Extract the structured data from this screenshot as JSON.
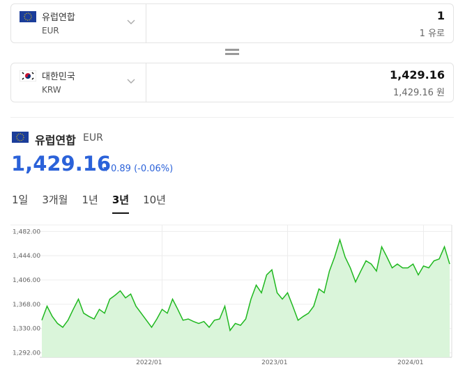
{
  "converter": {
    "from": {
      "name": "유럽연합",
      "code": "EUR",
      "amount": "1",
      "amount_sub": "1 유로"
    },
    "to": {
      "name": "대한민국",
      "code": "KRW",
      "amount": "1,429.16",
      "amount_sub": "1,429.16 원"
    }
  },
  "summary": {
    "name": "유럽연합",
    "code": "EUR",
    "rate": "1,429.16",
    "change": "0.89 (-0.06%)"
  },
  "tabs": {
    "items": [
      "1일",
      "3개월",
      "1년",
      "3년",
      "10년"
    ],
    "active": 3
  },
  "chart_data": {
    "type": "line",
    "color": "#1fb81f",
    "fill": "#daf5da",
    "grid": true,
    "categories": [
      null,
      null,
      null,
      null,
      null,
      null,
      null,
      null,
      null,
      null,
      null,
      null,
      null,
      null,
      null,
      null,
      null,
      null,
      null,
      null,
      null,
      null,
      null,
      "2022/01",
      null,
      null,
      null,
      null,
      null,
      null,
      null,
      null,
      null,
      null,
      null,
      null,
      null,
      null,
      null,
      null,
      null,
      null,
      null,
      null,
      null,
      null,
      null,
      "2023/01",
      null,
      null,
      null,
      null,
      null,
      null,
      null,
      null,
      null,
      null,
      null,
      null,
      null,
      null,
      null,
      null,
      null,
      null,
      null,
      null,
      null,
      null,
      null,
      null,
      null,
      "2024/01",
      null,
      null,
      null,
      null,
      null
    ],
    "values": [
      1343,
      1365,
      1349,
      1338,
      1332,
      1343,
      1360,
      1376,
      1354,
      1349,
      1345,
      1360,
      1354,
      1376,
      1382,
      1389,
      1378,
      1384,
      1365,
      1354,
      1343,
      1332,
      1345,
      1360,
      1354,
      1376,
      1360,
      1343,
      1345,
      1341,
      1338,
      1341,
      1332,
      1343,
      1345,
      1365,
      1327,
      1338,
      1335,
      1345,
      1376,
      1398,
      1386,
      1414,
      1422,
      1386,
      1376,
      1386,
      1365,
      1343,
      1349,
      1354,
      1365,
      1392,
      1386,
      1420,
      1442,
      1469,
      1442,
      1425,
      1403,
      1420,
      1436,
      1431,
      1420,
      1458,
      1442,
      1425,
      1431,
      1425,
      1425,
      1431,
      1414,
      1428,
      1425,
      1436,
      1439,
      1458,
      1431
    ],
    "ylim": [
      1285,
      1490
    ],
    "yticks": [
      {
        "value": 1292,
        "label": "1,292.00"
      },
      {
        "value": 1330,
        "label": "1,330.00"
      },
      {
        "value": 1368,
        "label": "1,368.00"
      },
      {
        "value": 1406,
        "label": "1,406.00"
      },
      {
        "value": 1444,
        "label": "1,444.00"
      },
      {
        "value": 1482,
        "label": "1,482.00"
      }
    ]
  }
}
